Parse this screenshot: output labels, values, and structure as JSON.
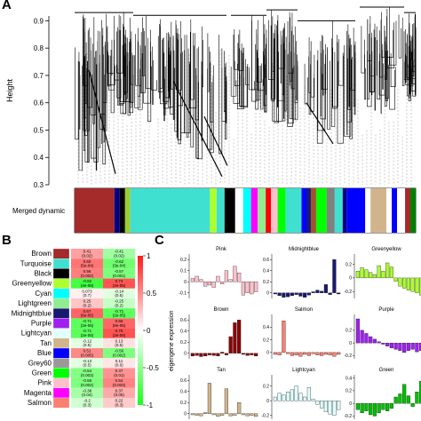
{
  "panel_a": {
    "label": "A",
    "y_axis_label": "Height",
    "y_ticks": [
      "0.3",
      "0.4",
      "0.5",
      "0.6",
      "0.7",
      "0.8",
      "0.9"
    ],
    "color_bar_label": "Merged dynamic",
    "color_bar_segments": [
      {
        "color": "#a52a2a",
        "w": 30
      },
      {
        "color": "#000080",
        "w": 4
      },
      {
        "color": "#000000",
        "w": 4
      },
      {
        "color": "#9acd32",
        "w": 4
      },
      {
        "color": "#40e0d0",
        "w": 60
      },
      {
        "color": "#adff2f",
        "w": 5
      },
      {
        "color": "#40e0d0",
        "w": 6
      },
      {
        "color": "#000000",
        "w": 8
      },
      {
        "color": "#ffffff",
        "w": 6
      },
      {
        "color": "#00ffff",
        "w": 6
      },
      {
        "color": "#ff00ff",
        "w": 5
      },
      {
        "color": "#90ee90",
        "w": 6
      },
      {
        "color": "#ff0000",
        "w": 4
      },
      {
        "color": "#ffc0cb",
        "w": 5
      },
      {
        "color": "#00ff00",
        "w": 6
      },
      {
        "color": "#40e0d0",
        "w": 12
      },
      {
        "color": "#0000ff",
        "w": 4
      },
      {
        "color": "#191970",
        "w": 3
      },
      {
        "color": "#a0522d",
        "w": 4
      },
      {
        "color": "#00ff00",
        "w": 8
      },
      {
        "color": "#808080",
        "w": 6
      },
      {
        "color": "#40e0d0",
        "w": 6
      },
      {
        "color": "#000080",
        "w": 3
      },
      {
        "color": "#0000ff",
        "w": 14
      },
      {
        "color": "#ffffff",
        "w": 4
      },
      {
        "color": "#d2b48c",
        "w": 12
      },
      {
        "color": "#ffffff",
        "w": 4
      },
      {
        "color": "#0000ff",
        "w": 4
      },
      {
        "color": "#ffffff",
        "w": 6
      },
      {
        "color": "#a52a2a",
        "w": 4
      },
      {
        "color": "#008000",
        "w": 4
      }
    ]
  },
  "panel_b": {
    "label": "B",
    "modules": [
      {
        "name": "Brown",
        "swatch": "#a52a2a",
        "c1": "0.41\n(0.02)",
        "c2": "-0.41\n(0.02)",
        "v1": 0.41,
        "v2": -0.41
      },
      {
        "name": "Turquoise",
        "swatch": "#40e0d0",
        "c1": "0.60\n(5e-04)",
        "c2": "-0.62\n(3e-04)",
        "v1": 0.6,
        "v2": -0.62
      },
      {
        "name": "Black",
        "swatch": "#000000",
        "c1": "0.56\n(0.002)",
        "c2": "-0.57\n(0.001)",
        "v1": 0.56,
        "v2": -0.57
      },
      {
        "name": "Greenyellow",
        "swatch": "#adff2f",
        "c1": "-0.82\n(4e-08)",
        "c2": "0.74\n(2e-05)",
        "v1": -0.82,
        "v2": 0.74
      },
      {
        "name": "Cyan",
        "swatch": "#00ffff",
        "c1": "0.073\n(0.7)",
        "c2": "-0.14\n(0.5)",
        "v1": 0.07,
        "v2": -0.14
      },
      {
        "name": "Lightgreen",
        "swatch": "#90ee90",
        "c1": "0.25\n(0.2)",
        "c2": "-0.25\n(0.2)",
        "v1": 0.25,
        "v2": -0.25
      },
      {
        "name": "Midnightblue",
        "swatch": "#191970",
        "c1": "0.67\n(6e-05)",
        "c2": "-0.71\n(2e-05)",
        "v1": 0.67,
        "v2": -0.71
      },
      {
        "name": "Purple",
        "swatch": "#a020f0",
        "c1": "-0.71\n(2e-05)",
        "c2": "0.66\n(8e-05)",
        "v1": -0.71,
        "v2": 0.66
      },
      {
        "name": "Lightcyan",
        "swatch": "#e0ffff",
        "c1": "-0.71\n(2e-05)",
        "c2": "0.75\n(2e-05)",
        "v1": -0.71,
        "v2": 0.75
      },
      {
        "name": "Tan",
        "swatch": "#d2b48c",
        "c1": "-0.12\n(0.5)",
        "c2": "0.13\n(0.5)",
        "v1": -0.12,
        "v2": 0.13
      },
      {
        "name": "Blue",
        "swatch": "#0000ff",
        "c1": "0.51\n(0.005)",
        "c2": "-0.56\n(0.002)",
        "v1": 0.51,
        "v2": -0.56
      },
      {
        "name": "Grey60",
        "swatch": "#999999",
        "c1": "-0.13\n(0.5)",
        "c2": "0.11\n(0.6)",
        "v1": -0.13,
        "v2": 0.11
      },
      {
        "name": "Green",
        "swatch": "#00ff00",
        "c1": "-0.54\n(0.003)",
        "c2": "0.47\n(0.01)",
        "v1": -0.54,
        "v2": 0.47
      },
      {
        "name": "Pink",
        "swatch": "#ffc0cb",
        "c1": "-0.56\n(0.002)",
        "c2": "0.54\n(0.003)",
        "v1": -0.56,
        "v2": 0.54
      },
      {
        "name": "Magenta",
        "swatch": "#ff00ff",
        "c1": "-0.38\n(0.04)",
        "c2": "0.37\n(0.05)",
        "v1": -0.38,
        "v2": 0.37
      },
      {
        "name": "Salmon",
        "swatch": "#fa8072",
        "c1": "-0.2\n(0.3)",
        "c2": "0.22\n(0.3)",
        "v1": -0.2,
        "v2": 0.22
      }
    ],
    "legend_ticks": [
      "1",
      "0.5",
      "0",
      "-0.5",
      "-1"
    ]
  },
  "panel_c": {
    "label": "C",
    "y_axis_label": "eigengene expression",
    "plots": [
      {
        "title": "Pink",
        "color": "#ffc0cb",
        "yticks": [
          "0.2",
          "0.1",
          "0",
          "-0.1"
        ],
        "ymax": 0.25,
        "ymin": -0.15,
        "values": [
          0.03,
          0.05,
          0.02,
          -0.04,
          -0.03,
          -0.05,
          0.05,
          -0.02,
          0.1,
          0.02,
          0.14,
          0.08,
          -0.12,
          -0.1,
          -0.11,
          -0.09
        ]
      },
      {
        "title": "Midnightblue",
        "color": "#191970",
        "yticks": [
          "0.6",
          "0.4",
          "0.2",
          "0"
        ],
        "ymax": 0.7,
        "ymin": -0.1,
        "values": [
          -0.02,
          -0.05,
          -0.08,
          -0.07,
          -0.05,
          -0.03,
          -0.06,
          -0.08,
          -0.04,
          0.02,
          0.05,
          0.03,
          0.15,
          -0.03,
          0.6,
          -0.02
        ]
      },
      {
        "title": "Greenyellow",
        "color": "#adff2f",
        "yticks": [
          "0.2",
          "0",
          "-0.2"
        ],
        "ymax": 0.35,
        "ymin": -0.3,
        "values": [
          0.1,
          0.15,
          0.12,
          0.08,
          0.05,
          0.18,
          0.1,
          0.22,
          0.16,
          -0.05,
          -0.12,
          -0.15,
          -0.18,
          -0.2,
          -0.22,
          -0.25
        ]
      },
      {
        "title": "Brown",
        "color": "#8b0000",
        "yticks": [
          "0.6",
          "0.4",
          "0.2",
          "0"
        ],
        "ymax": 0.7,
        "ymin": -0.1,
        "values": [
          -0.05,
          -0.04,
          -0.06,
          -0.05,
          -0.03,
          -0.04,
          -0.05,
          0.02,
          -0.03,
          0.3,
          0.55,
          0.6,
          -0.02,
          -0.04,
          -0.03,
          -0.05
        ]
      },
      {
        "title": "Salmon",
        "color": "#fa8072",
        "yticks": [
          "0.4",
          "0.2",
          "0"
        ],
        "ymax": 0.6,
        "ymin": -0.1,
        "values": [
          -0.03,
          -0.04,
          0.5,
          -0.02,
          -0.05,
          -0.04,
          -0.06,
          -0.03,
          -0.05,
          -0.02,
          -0.04,
          -0.05,
          -0.03,
          -0.04,
          -0.06,
          -0.03
        ]
      },
      {
        "title": "Purple",
        "color": "#a020f0",
        "yticks": [
          "0.2",
          "0",
          "-0.2"
        ],
        "ymax": 0.45,
        "ymin": -0.25,
        "values": [
          0.38,
          0.2,
          0.15,
          0.1,
          0.06,
          0.02,
          -0.02,
          -0.05,
          -0.08,
          -0.1,
          -0.12,
          -0.15,
          -0.12,
          -0.1,
          -0.14,
          -0.12
        ]
      },
      {
        "title": "Tan",
        "color": "#d2b48c",
        "yticks": [
          "0.6",
          "0.4",
          "0.2",
          "0"
        ],
        "ymax": 0.7,
        "ymin": -0.1,
        "values": [
          -0.02,
          -0.03,
          -0.04,
          0.02,
          0.55,
          -0.02,
          -0.05,
          -0.03,
          0.45,
          -0.04,
          -0.03,
          0.2,
          -0.02,
          -0.04,
          -0.03,
          -0.05
        ]
      },
      {
        "title": "Lightcyan",
        "color": "#e0ffff",
        "yticks": [
          "0.2",
          "0",
          "-0.2"
        ],
        "ymax": 0.35,
        "ymin": -0.25,
        "values": [
          0.05,
          0.1,
          0.08,
          0.12,
          0.15,
          0.2,
          0.1,
          0.05,
          0.18,
          0.02,
          -0.05,
          -0.1,
          -0.15,
          -0.18,
          -0.2,
          -0.12
        ]
      },
      {
        "title": "Green",
        "color": "#00c000",
        "yticks": [
          "0.4",
          "0.2",
          "0",
          "-0.2"
        ],
        "ymax": 0.45,
        "ymin": -0.25,
        "values": [
          -0.1,
          -0.15,
          -0.12,
          -0.18,
          -0.2,
          -0.15,
          -0.1,
          -0.12,
          -0.08,
          0.1,
          0.15,
          0.3,
          0.12,
          -0.05,
          0.18,
          0.35
        ]
      }
    ]
  }
}
